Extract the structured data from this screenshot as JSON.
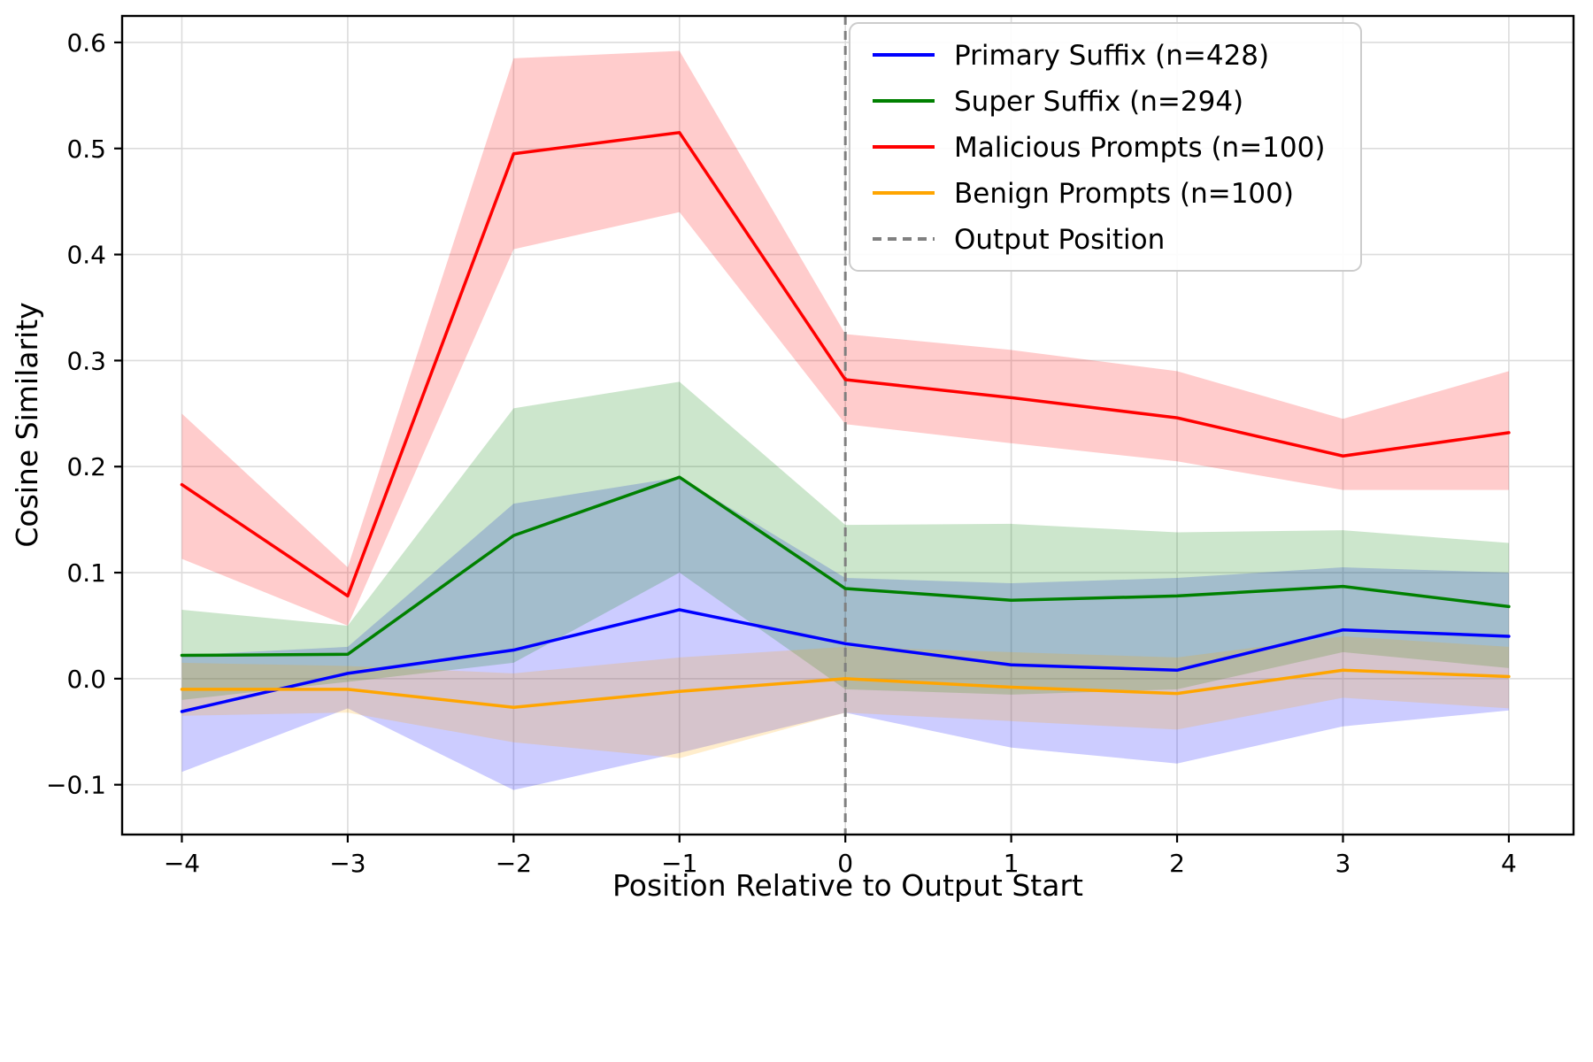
{
  "chart_data": {
    "type": "line",
    "title": "",
    "xlabel": "Position Relative to Output Start",
    "ylabel": "Cosine Similarity",
    "x": [
      -4,
      -3,
      -2,
      -1,
      0,
      1,
      2,
      3,
      4
    ],
    "xticks": [
      -4,
      -3,
      -2,
      -1,
      0,
      1,
      2,
      3,
      4
    ],
    "yticks": [
      -0.1,
      0.0,
      0.1,
      0.2,
      0.3,
      0.4,
      0.5,
      0.6
    ],
    "xlim": [
      -4.36,
      4.39
    ],
    "ylim": [
      -0.147,
      0.625
    ],
    "grid": true,
    "legend_position": "upper right",
    "band_alpha": 0.2,
    "series": [
      {
        "name": "Primary Suffix (n=428)",
        "color": "#0000ff",
        "values": [
          -0.031,
          0.005,
          0.027,
          0.065,
          0.033,
          0.013,
          0.008,
          0.046,
          0.04
        ],
        "band_upper": [
          0.022,
          0.03,
          0.165,
          0.19,
          0.095,
          0.09,
          0.095,
          0.105,
          0.1
        ],
        "band_lower": [
          -0.088,
          -0.028,
          -0.105,
          -0.07,
          -0.032,
          -0.065,
          -0.08,
          -0.045,
          -0.03
        ]
      },
      {
        "name": "Super Suffix (n=294)",
        "color": "#008000",
        "values": [
          0.022,
          0.023,
          0.135,
          0.19,
          0.085,
          0.074,
          0.078,
          0.087,
          0.068
        ],
        "band_upper": [
          0.065,
          0.05,
          0.255,
          0.28,
          0.145,
          0.146,
          0.138,
          0.14,
          0.128
        ],
        "band_lower": [
          -0.02,
          -0.003,
          0.015,
          0.1,
          -0.01,
          -0.015,
          -0.01,
          0.025,
          0.01
        ]
      },
      {
        "name": "Malicious Prompts (n=100)",
        "color": "#ff0000",
        "values": [
          0.183,
          0.078,
          0.495,
          0.515,
          0.282,
          0.265,
          0.246,
          0.21,
          0.232
        ],
        "band_upper": [
          0.25,
          0.105,
          0.585,
          0.592,
          0.325,
          0.31,
          0.29,
          0.245,
          0.29
        ],
        "band_lower": [
          0.113,
          0.05,
          0.405,
          0.44,
          0.24,
          0.222,
          0.205,
          0.178,
          0.178
        ]
      },
      {
        "name": "Benign Prompts (n=100)",
        "color": "#ffa500",
        "values": [
          -0.01,
          -0.01,
          -0.027,
          -0.012,
          0.0,
          -0.008,
          -0.014,
          0.008,
          0.002
        ],
        "band_upper": [
          0.015,
          0.012,
          0.005,
          0.02,
          0.03,
          0.025,
          0.02,
          0.04,
          0.03
        ],
        "band_lower": [
          -0.035,
          -0.032,
          -0.06,
          -0.075,
          -0.032,
          -0.04,
          -0.048,
          -0.018,
          -0.028
        ]
      }
    ],
    "vline": {
      "x": 0,
      "label": "Output Position",
      "color": "#808080",
      "style": "dashed"
    },
    "colors": {
      "grid": "#dcdcdc",
      "spine": "#000000",
      "legend_border": "#cccccc",
      "legend_background": "#ffffff"
    }
  }
}
